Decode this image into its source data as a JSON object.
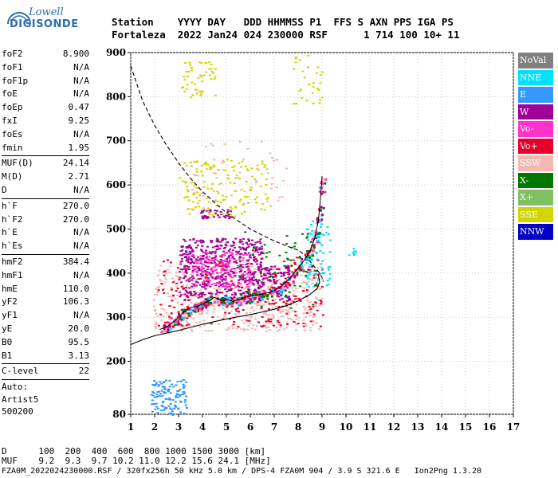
{
  "logo": {
    "top": "Lowell",
    "bottom": "DIGISONDE"
  },
  "header": {
    "line1": "Station    YYYY DAY   DDD HHMMSS P1  FFS S AXN PPS IGA PS",
    "line2": "Fortaleza  2022 Jan24 024 230000 RSF      1 714 100 10+ 11"
  },
  "params": {
    "group1": [
      [
        "foF2",
        "8.900"
      ],
      [
        "foF1",
        "N/A"
      ],
      [
        "foF1p",
        "N/A"
      ],
      [
        "foE",
        "N/A"
      ],
      [
        "foEp",
        "0.47"
      ],
      [
        "fxI",
        "9.25"
      ],
      [
        "foEs",
        "N/A"
      ],
      [
        "fmin",
        "1.95"
      ]
    ],
    "group2": [
      [
        "MUF(D)",
        "24.14"
      ],
      [
        "M(D)",
        "2.71"
      ],
      [
        "D",
        "N/A"
      ]
    ],
    "group3": [
      [
        "h`F",
        "270.0"
      ],
      [
        "h`F2",
        "270.0"
      ],
      [
        "h`E",
        "N/A"
      ],
      [
        "h`Es",
        "N/A"
      ]
    ],
    "group4": [
      [
        "hmF2",
        "384.4"
      ],
      [
        "hmF1",
        "N/A"
      ],
      [
        "hmE",
        "110.0"
      ],
      [
        "yF2",
        "106.3"
      ],
      [
        "yF1",
        "N/A"
      ],
      [
        "yE",
        "20.0"
      ],
      [
        "B0",
        "95.5"
      ],
      [
        "B1",
        "3.13"
      ]
    ],
    "group5": [
      [
        "C-level",
        "22"
      ]
    ],
    "auto": [
      "Auto:",
      "Artist5",
      "500200"
    ]
  },
  "footer": {
    "line1": "D      100  200  400  600  800 1000 1500 3000 [km]",
    "line2": "MUF    9.2  9.3  9.7 10.2 11.0 12.2 15.6 24.1 [MHz]",
    "line3": "FZA0M_2022024230000.RSF / 320fx256h 50 kHz 5.0 km / DPS-4 FZA0M 904 / 3.9 S 321.6 E   Ion2Png 1.3.20"
  },
  "legend": [
    {
      "label": "NoVal",
      "color": "#808080",
      "text": "#ffffff"
    },
    {
      "label": "NNE",
      "color": "#00e0ff",
      "text": "#ffffff"
    },
    {
      "label": "E",
      "color": "#3399ff",
      "text": "#ffffff"
    },
    {
      "label": "W",
      "color": "#a0009a",
      "text": "#ffffff"
    },
    {
      "label": "Vo-",
      "color": "#ff33cc",
      "text": "#ffffff"
    },
    {
      "label": "Vo+",
      "color": "#e8002a",
      "text": "#ffffff"
    },
    {
      "label": "SSW",
      "color": "#f4b8b0",
      "text": "#ffffff"
    },
    {
      "label": "X-",
      "color": "#007800",
      "text": "#ffffff"
    },
    {
      "label": "X+",
      "color": "#80c060",
      "text": "#ffffff"
    },
    {
      "label": "SSE",
      "color": "#d4d400",
      "text": "#ffffff"
    },
    {
      "label": "NNW",
      "color": "#0000c8",
      "text": "#ffffff"
    }
  ],
  "chart_data": {
    "type": "scatter",
    "xlim": [
      1,
      17
    ],
    "ylim": [
      80,
      900
    ],
    "xticks": [
      1,
      2,
      3,
      4,
      5,
      6,
      7,
      8,
      9,
      10,
      11,
      12,
      13,
      14,
      15,
      16,
      17
    ],
    "yticks": [
      80,
      200,
      300,
      400,
      500,
      600,
      700,
      800,
      900
    ],
    "grid": true,
    "traces": [
      {
        "name": "dashed",
        "points": [
          [
            1,
            870
          ],
          [
            1.5,
            790
          ],
          [
            2,
            735
          ],
          [
            2.5,
            690
          ],
          [
            3,
            650
          ],
          [
            3.5,
            615
          ],
          [
            4,
            585
          ],
          [
            4.5,
            560
          ],
          [
            5,
            537
          ],
          [
            5.5,
            518
          ],
          [
            6,
            500
          ],
          [
            6.5,
            486
          ],
          [
            7,
            473
          ],
          [
            7.5,
            462
          ],
          [
            8,
            452
          ],
          [
            8.3,
            440
          ],
          [
            8.6,
            420
          ],
          [
            8.9,
            400
          ],
          [
            9,
            390
          ],
          [
            9.05,
            380
          ]
        ]
      },
      {
        "name": "profile",
        "points": [
          [
            1,
            238
          ],
          [
            1.5,
            249
          ],
          [
            2,
            258
          ],
          [
            2.5,
            264
          ],
          [
            3,
            270
          ],
          [
            3.5,
            277
          ],
          [
            4,
            284
          ],
          [
            4.5,
            290
          ],
          [
            5,
            296
          ],
          [
            5.5,
            301
          ],
          [
            6,
            306
          ],
          [
            6.5,
            312
          ],
          [
            7,
            318
          ],
          [
            7.5,
            326
          ],
          [
            8,
            337
          ],
          [
            8.5,
            352
          ],
          [
            8.8,
            365
          ],
          [
            8.9,
            380
          ],
          [
            8.85,
            395
          ]
        ]
      },
      {
        "name": "trace",
        "points": [
          [
            2.2,
            272
          ],
          [
            2.5,
            278
          ],
          [
            2.8,
            290
          ],
          [
            3.0,
            300
          ],
          [
            3.2,
            312
          ],
          [
            3.5,
            322
          ],
          [
            3.8,
            325
          ],
          [
            4.0,
            330
          ],
          [
            4.2,
            335
          ],
          [
            4.5,
            345
          ],
          [
            4.8,
            338
          ],
          [
            5.0,
            340
          ],
          [
            5.3,
            336
          ],
          [
            5.5,
            340
          ],
          [
            5.8,
            345
          ],
          [
            6.0,
            348
          ],
          [
            6.5,
            352
          ],
          [
            7.0,
            360
          ],
          [
            7.3,
            370
          ],
          [
            7.6,
            385
          ],
          [
            7.9,
            405
          ],
          [
            8.2,
            425
          ],
          [
            8.5,
            450
          ],
          [
            8.7,
            480
          ],
          [
            8.85,
            520
          ],
          [
            8.95,
            580
          ],
          [
            9.0,
            620
          ]
        ]
      }
    ],
    "clusters": [
      {
        "series": "SSW",
        "x": [
          1.9,
          9.0
        ],
        "y": [
          270,
          420
        ],
        "n": 520
      },
      {
        "series": "Vo+",
        "x": [
          2.1,
          9.0
        ],
        "y": [
          280,
          440
        ],
        "n": 240
      },
      {
        "series": "W",
        "x": [
          3.0,
          6.5
        ],
        "y": [
          340,
          480
        ],
        "n": 520
      },
      {
        "series": "W",
        "x": [
          6.5,
          7.6
        ],
        "y": [
          340,
          420
        ],
        "n": 90
      },
      {
        "series": "Vo-",
        "x": [
          3.5,
          6.0
        ],
        "y": [
          370,
          450
        ],
        "n": 140
      },
      {
        "series": "W",
        "x": [
          3.9,
          5.2
        ],
        "y": [
          525,
          545
        ],
        "n": 40
      },
      {
        "series": "SSE",
        "x": [
          3.0,
          6.8
        ],
        "y": [
          530,
          660
        ],
        "n": 150
      },
      {
        "series": "SSE",
        "x": [
          3.1,
          4.5
        ],
        "y": [
          800,
          880
        ],
        "n": 50
      },
      {
        "series": "SSE",
        "x": [
          7.7,
          9.0
        ],
        "y": [
          780,
          900
        ],
        "n": 30
      },
      {
        "series": "E",
        "x": [
          1.8,
          3.3
        ],
        "y": [
          80,
          160
        ],
        "n": 120
      },
      {
        "series": "NNE",
        "x": [
          8.3,
          9.3
        ],
        "y": [
          370,
          520
        ],
        "n": 70
      },
      {
        "series": "X-",
        "x": [
          5.5,
          8.8
        ],
        "y": [
          320,
          500
        ],
        "n": 60
      },
      {
        "series": "SSW",
        "x": [
          3.5,
          7.5
        ],
        "y": [
          560,
          700
        ],
        "n": 50
      },
      {
        "series": "NNE",
        "x": [
          10.0,
          10.4
        ],
        "y": [
          440,
          460
        ],
        "n": 8
      }
    ]
  }
}
